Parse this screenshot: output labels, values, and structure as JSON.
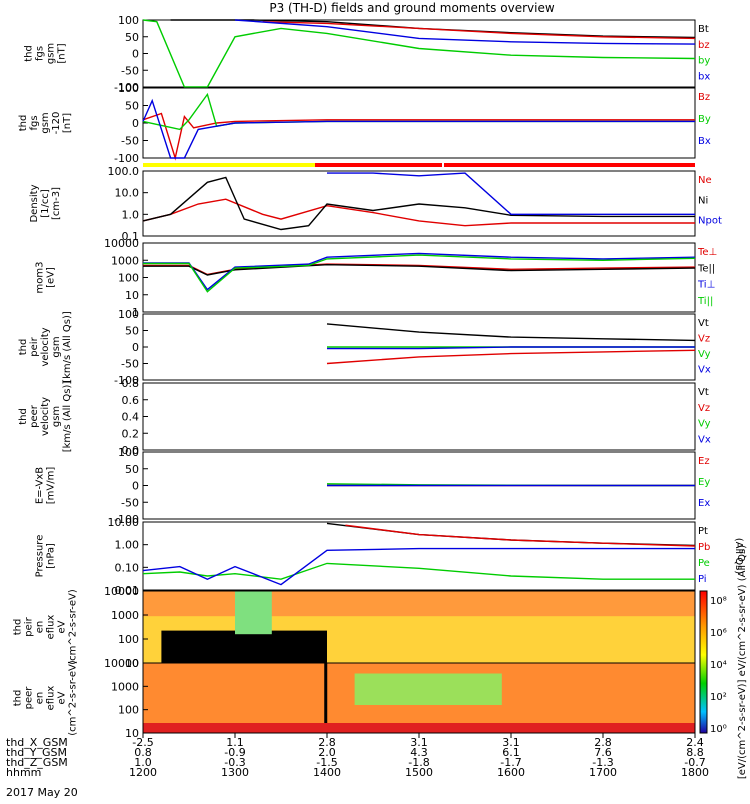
{
  "title": "P3 (TH-D) fields and ground moments overview",
  "colors": {
    "black": "#000000",
    "red": "#e00000",
    "green": "#00cc00",
    "blue": "#0000e0",
    "yellow": "#ffff00"
  },
  "chart_data": [
    {
      "type": "line",
      "panel": "fgs",
      "ylabel": [
        "thd",
        "fgs",
        "gsm",
        "[nT]"
      ],
      "yticks": [
        "100",
        "50",
        "0",
        "-50",
        "-100"
      ],
      "ylim": [
        -100,
        100
      ],
      "legend": [
        {
          "name": "Bt",
          "color": "#000000"
        },
        {
          "name": "bz",
          "color": "#e00000"
        },
        {
          "name": "by",
          "color": "#00cc00"
        },
        {
          "name": "bx",
          "color": "#0000e0"
        }
      ],
      "series": [
        {
          "name": "Bt",
          "x": [
            1230,
            1240,
            1320,
            1400,
            1500,
            1600,
            1700,
            1800
          ],
          "y": [
            100,
            100,
            100,
            95,
            75,
            62,
            52,
            48
          ]
        },
        {
          "name": "bz",
          "x": [
            1330,
            1400,
            1500,
            1600,
            1700,
            1800
          ],
          "y": [
            95,
            90,
            75,
            60,
            50,
            45
          ]
        },
        {
          "name": "by",
          "x": [
            1200,
            1215,
            1245,
            1270,
            1300,
            1350,
            1400,
            1500,
            1600,
            1700,
            1800
          ],
          "y": [
            100,
            95,
            -100,
            -100,
            50,
            75,
            60,
            15,
            -5,
            -12,
            -15
          ]
        },
        {
          "name": "bx",
          "x": [
            1300,
            1400,
            1500,
            1600,
            1700,
            1800
          ],
          "y": [
            100,
            80,
            45,
            35,
            30,
            28
          ]
        }
      ]
    },
    {
      "type": "line",
      "panel": "fgs-120",
      "ylabel": [
        "thd",
        "fgs",
        "gsm",
        "-120",
        "[nT]"
      ],
      "yticks": [
        "100",
        "50",
        "0",
        "-50",
        "-100"
      ],
      "ylim": [
        -120,
        100
      ],
      "legend": [
        {
          "name": "Bz",
          "color": "#e00000"
        },
        {
          "name": "By",
          "color": "#00cc00"
        },
        {
          "name": "Bx",
          "color": "#0000e0"
        }
      ],
      "series": [
        {
          "name": "Bz",
          "x": [
            1200,
            1220,
            1235,
            1245,
            1255,
            1280,
            1300,
            1400,
            1800
          ],
          "y": [
            0,
            20,
            -120,
            10,
            -25,
            -10,
            -5,
            0,
            0
          ]
        },
        {
          "name": "By",
          "x": [
            1200,
            1240,
            1250,
            1270,
            1280,
            1300,
            1400,
            1800
          ],
          "y": [
            -5,
            -30,
            0,
            80,
            -20,
            -10,
            -5,
            -5
          ]
        },
        {
          "name": "Bx",
          "x": [
            1200,
            1210,
            1230,
            1245,
            1260,
            1300,
            1400,
            1800
          ],
          "y": [
            -5,
            60,
            -120,
            -120,
            -30,
            -10,
            -5,
            -5
          ]
        }
      ]
    },
    {
      "type": "line",
      "panel": "density",
      "yscale": "log",
      "ylabel": [
        "Density",
        "[1/cc]",
        "[cm-3]"
      ],
      "yticks": [
        "100.0",
        "10.0",
        "1.0",
        "0.1"
      ],
      "ylim": [
        0.1,
        100
      ],
      "legend": [
        {
          "name": "Ne",
          "color": "#e00000"
        },
        {
          "name": "Ni",
          "color": "#000000"
        },
        {
          "name": "Npot",
          "color": "#0000e0"
        }
      ],
      "series": [
        {
          "name": "Ne",
          "x": [
            1200,
            1230,
            1260,
            1290,
            1330,
            1350,
            1400,
            1450,
            1500,
            1550,
            1600,
            1700,
            1800
          ],
          "y": [
            0.5,
            1.0,
            3.0,
            5.0,
            1.0,
            0.6,
            2.5,
            1.2,
            0.5,
            0.3,
            0.4,
            0.4,
            0.4
          ]
        },
        {
          "name": "Ni",
          "x": [
            1200,
            1230,
            1270,
            1290,
            1310,
            1350,
            1380,
            1400,
            1450,
            1500,
            1550,
            1600,
            1700,
            1800
          ],
          "y": [
            0.5,
            1.0,
            30.0,
            50.0,
            0.6,
            0.2,
            0.3,
            3.0,
            1.5,
            3.0,
            2.0,
            0.9,
            0.8,
            0.8
          ]
        },
        {
          "name": "Npot",
          "x": [
            1400,
            1450,
            1500,
            1550,
            1600,
            1700,
            1800
          ],
          "y": [
            80.0,
            80.0,
            60.0,
            80.0,
            1.0,
            1.0,
            1.0
          ]
        }
      ]
    },
    {
      "type": "line",
      "panel": "temperature",
      "yscale": "log",
      "ylabel": [
        "mom3",
        "[eV]"
      ],
      "yticks": [
        "10000",
        "1000",
        "100",
        "10",
        "1"
      ],
      "ylim": [
        1,
        10000
      ],
      "legend": [
        {
          "name": "Te⊥",
          "color": "#e00000"
        },
        {
          "name": "Te||",
          "color": "#000000"
        },
        {
          "name": "Ti⊥",
          "color": "#0000e0"
        },
        {
          "name": "Ti||",
          "color": "#00cc00"
        }
      ],
      "series": [
        {
          "name": "Te⊥",
          "x": [
            1200,
            1250,
            1270,
            1300,
            1400,
            1500,
            1600,
            1700,
            1800
          ],
          "y": [
            500,
            500,
            150,
            300,
            600,
            500,
            300,
            350,
            400
          ]
        },
        {
          "name": "Te||",
          "x": [
            1200,
            1250,
            1270,
            1300,
            1400,
            1500,
            1600,
            1700,
            1800
          ],
          "y": [
            450,
            450,
            140,
            280,
            550,
            450,
            250,
            300,
            350
          ]
        },
        {
          "name": "Ti⊥",
          "x": [
            1200,
            1250,
            1270,
            1300,
            1380,
            1400,
            1500,
            1600,
            1700,
            1800
          ],
          "y": [
            700,
            700,
            20,
            400,
            600,
            1500,
            2500,
            1500,
            1200,
            1500
          ]
        },
        {
          "name": "Ti||",
          "x": [
            1200,
            1250,
            1270,
            1300,
            1380,
            1400,
            1500,
            1600,
            1700,
            1800
          ],
          "y": [
            650,
            650,
            15,
            350,
            500,
            1200,
            2000,
            1200,
            1000,
            1300
          ]
        }
      ]
    },
    {
      "type": "line",
      "panel": "peir-velocity",
      "ylabel": [
        "thd",
        "peir",
        "velocity",
        "gsm",
        "[km/s (All Qs)]"
      ],
      "yticks": [
        "100",
        "50",
        "0",
        "-50",
        "-100"
      ],
      "ylim": [
        -100,
        100
      ],
      "legend": [
        {
          "name": "Vt",
          "color": "#000000"
        },
        {
          "name": "Vz",
          "color": "#e00000"
        },
        {
          "name": "Vy",
          "color": "#00cc00"
        },
        {
          "name": "Vx",
          "color": "#0000e0"
        }
      ],
      "series": [
        {
          "name": "Vt",
          "x": [
            1400,
            1500,
            1600,
            1700,
            1800
          ],
          "y": [
            70,
            45,
            30,
            25,
            20
          ]
        },
        {
          "name": "Vz",
          "x": [
            1400,
            1500,
            1600,
            1700,
            1800
          ],
          "y": [
            -50,
            -30,
            -20,
            -15,
            -10
          ]
        },
        {
          "name": "Vy",
          "x": [
            1400,
            1500,
            1600,
            1700,
            1800
          ],
          "y": [
            0,
            0,
            0,
            0,
            0
          ]
        },
        {
          "name": "Vx",
          "x": [
            1400,
            1500,
            1600,
            1700,
            1800
          ],
          "y": [
            -5,
            -5,
            0,
            0,
            0
          ]
        }
      ]
    },
    {
      "type": "line",
      "panel": "peer-velocity",
      "ylabel": [
        "thd",
        "peer",
        "velocity",
        "gsm",
        "[km/s (All Qs)]"
      ],
      "yticks": [
        "0.8",
        "0.6",
        "0.4",
        "0.2",
        "0.0"
      ],
      "ylim": [
        0,
        0.8
      ],
      "legend": [
        {
          "name": "Vt",
          "color": "#000000"
        },
        {
          "name": "Vz",
          "color": "#e00000"
        },
        {
          "name": "Vy",
          "color": "#00cc00"
        },
        {
          "name": "Vx",
          "color": "#0000e0"
        }
      ],
      "series": []
    },
    {
      "type": "line",
      "panel": "efield",
      "ylabel": [
        "E=-VxB",
        "[mV/m]"
      ],
      "yticks": [
        "100",
        "50",
        "0",
        "-50",
        "-100"
      ],
      "ylim": [
        -100,
        100
      ],
      "legend": [
        {
          "name": "Ez",
          "color": "#e00000"
        },
        {
          "name": "Ey",
          "color": "#00cc00"
        },
        {
          "name": "Ex",
          "color": "#0000e0"
        }
      ],
      "series": [
        {
          "name": "Ez",
          "x": [
            1400,
            1500,
            1600,
            1700,
            1800
          ],
          "y": [
            0,
            0,
            0,
            0,
            0
          ]
        },
        {
          "name": "Ey",
          "x": [
            1400,
            1500,
            1600,
            1700,
            1800
          ],
          "y": [
            5,
            2,
            1,
            0,
            0
          ]
        },
        {
          "name": "Ex",
          "x": [
            1400,
            1500,
            1600,
            1700,
            1800
          ],
          "y": [
            0,
            0,
            0,
            0,
            0
          ]
        }
      ]
    },
    {
      "type": "line",
      "panel": "pressure",
      "yscale": "log",
      "ylabel": [
        "Pressure",
        "[nPa]"
      ],
      "yticks": [
        "10.00",
        "1.00",
        "0.10",
        "0.01"
      ],
      "ylim": [
        0.005,
        30
      ],
      "legend": [
        {
          "name": "Pt",
          "color": "#000000"
        },
        {
          "name": "Pb",
          "color": "#e00000"
        },
        {
          "name": "Pe",
          "color": "#00cc00"
        },
        {
          "name": "Pi",
          "color": "#0000e0"
        }
      ],
      "legend_note": "(All Qs)",
      "series": [
        {
          "name": "Pt",
          "x": [
            1400,
            1500,
            1600,
            1700,
            1800
          ],
          "y": [
            25,
            6,
            3,
            2,
            1.5
          ]
        },
        {
          "name": "Pb",
          "x": [
            1420,
            1500,
            1600,
            1700,
            1800
          ],
          "y": [
            20,
            6,
            3,
            2,
            1.4
          ]
        },
        {
          "name": "Pe",
          "x": [
            1200,
            1240,
            1270,
            1300,
            1350,
            1400,
            1500,
            1600,
            1700,
            1800
          ],
          "y": [
            0.04,
            0.05,
            0.03,
            0.04,
            0.02,
            0.15,
            0.08,
            0.03,
            0.02,
            0.02
          ]
        },
        {
          "name": "Pi",
          "x": [
            1200,
            1240,
            1270,
            1300,
            1350,
            1400,
            1500,
            1600,
            1700,
            1800
          ],
          "y": [
            0.06,
            0.1,
            0.02,
            0.1,
            0.01,
            0.8,
            1.0,
            1.0,
            1.0,
            1.0
          ]
        }
      ]
    },
    {
      "type": "heatmap",
      "panel": "peir-spectrogram",
      "yscale": "log",
      "ylabel": [
        "thd",
        "peir",
        "en",
        "eflux",
        "eV",
        "(cm^2-s-sr-eV)"
      ],
      "yticks": [
        "10000",
        "1000",
        "100",
        "10"
      ],
      "ylim": [
        5,
        30000
      ]
    },
    {
      "type": "heatmap",
      "panel": "peer-spectrogram",
      "yscale": "log",
      "ylabel": [
        "thd",
        "peer",
        "en",
        "eflux",
        "eV",
        "(cm^2-s-sr-eV)"
      ],
      "yticks": [
        "10000",
        "1000",
        "100",
        "10"
      ],
      "ylim": [
        5,
        30000
      ]
    }
  ],
  "colorbar": {
    "ticks": [
      "10⁸",
      "10⁶",
      "10⁴",
      "10²",
      "10⁰"
    ],
    "label": "[eV/(cm^2-s-sr-eV)] eV/(cm^2-s-sr-eV) (All Qs)"
  },
  "x_axis": {
    "ticks_time": [
      "1200",
      "1300",
      "1400",
      "1500",
      "1600",
      "1700",
      "1800"
    ],
    "rows": [
      {
        "label": "thd_X_GSM",
        "values": [
          "-2.5",
          "1.1",
          "2.8",
          "3.1",
          "3.1",
          "2.8",
          "2.4"
        ]
      },
      {
        "label": "thd_Y_GSM",
        "values": [
          "0.8",
          "-0.9",
          "2.0",
          "4.3",
          "6.1",
          "7.6",
          "8.8"
        ]
      },
      {
        "label": "thd_Z_GSM",
        "values": [
          "1.0",
          "-0.3",
          "-1.5",
          "-1.8",
          "-1.7",
          "-1.3",
          "-0.7"
        ]
      },
      {
        "label": "hhmm",
        "values": [
          "1200",
          "1300",
          "1400",
          "1500",
          "1600",
          "1700",
          "1800"
        ]
      }
    ],
    "date": "2017 May 20"
  }
}
